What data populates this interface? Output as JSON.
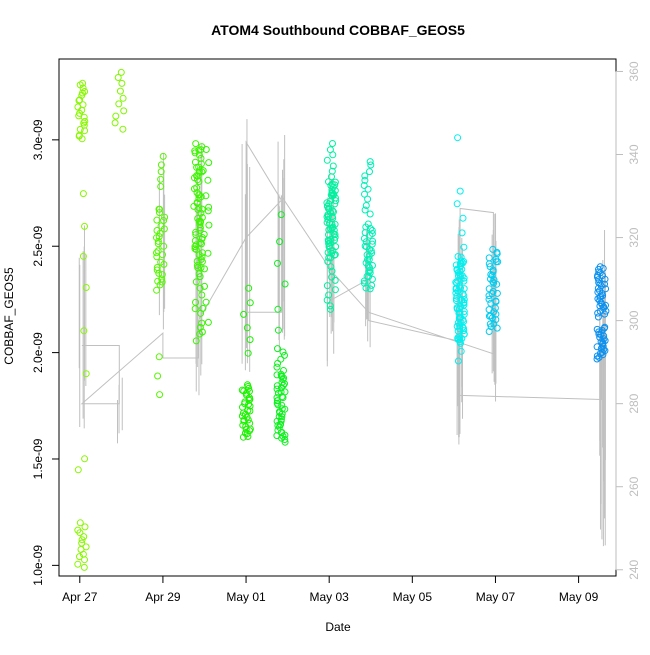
{
  "chart_data": {
    "type": "scatter",
    "title": "ATOM4 Southbound COBBAF_GEOS5",
    "xlabel": "Date",
    "ylabel": "COBBAF_GEOS5",
    "x_ticks": [
      {
        "day": 27,
        "label": "Apr 27"
      },
      {
        "day": 29,
        "label": "Apr 29"
      },
      {
        "day": 31,
        "label": "May 01"
      },
      {
        "day": 33,
        "label": "May 03"
      },
      {
        "day": 35,
        "label": "May 05"
      },
      {
        "day": 37,
        "label": "May 07"
      },
      {
        "day": 39,
        "label": "May 09"
      }
    ],
    "xlim": [
      26.5,
      39.9
    ],
    "ylim": [
      9.5e-10,
      3.38e-09
    ],
    "y_ticks": [
      {
        "value": 1e-09,
        "label": "1.0e-09"
      },
      {
        "value": 1.5e-09,
        "label": "1.5e-09"
      },
      {
        "value": 2e-09,
        "label": "2.0e-09"
      },
      {
        "value": 2.5e-09,
        "label": "2.5e-09"
      },
      {
        "value": 3e-09,
        "label": "3.0e-09"
      }
    ],
    "y2lim": [
      238.5,
      363
    ],
    "y2_ticks": [
      {
        "value": 240,
        "label": "240"
      },
      {
        "value": 260,
        "label": "260"
      },
      {
        "value": 280,
        "label": "280"
      },
      {
        "value": 300,
        "label": "300"
      },
      {
        "value": 320,
        "label": "320"
      },
      {
        "value": 340,
        "label": "340"
      },
      {
        "value": 360,
        "label": "360"
      }
    ],
    "point_groups": [
      {
        "x": 27.05,
        "color": "#88f700",
        "ranges": [
          [
            3e-09,
            3.27e-09,
            22
          ],
          [
            9.9e-10,
            1.2e-09,
            14
          ],
          [
            1.45e-09,
            1.5e-09,
            2
          ],
          [
            1.9e-09,
            2.1e-09,
            2
          ],
          [
            2.3e-09,
            2.75e-09,
            4
          ]
        ]
      },
      {
        "x": 27.95,
        "color": "#80f700",
        "ranges": [
          [
            3.05e-09,
            3.32e-09,
            10
          ]
        ]
      },
      {
        "x": 28.95,
        "color": "#55f700",
        "ranges": [
          [
            2.3e-09,
            2.68e-09,
            30
          ],
          [
            2.78e-09,
            2.92e-09,
            5
          ],
          [
            1.8e-09,
            1.98e-09,
            3
          ]
        ]
      },
      {
        "x": 29.85,
        "color": "#3ef500",
        "ranges": [
          [
            2.4e-09,
            2.98e-09,
            60
          ],
          [
            2.05e-09,
            2.4e-09,
            12
          ]
        ]
      },
      {
        "x": 30.0,
        "color": "#32f500",
        "ranges": [
          [
            2.1e-09,
            2.95e-09,
            18
          ]
        ]
      },
      {
        "x": 31.0,
        "color": "#1cf200",
        "ranges": [
          [
            1.6e-09,
            1.85e-09,
            35
          ],
          [
            2e-09,
            2.3e-09,
            6
          ]
        ]
      },
      {
        "x": 31.85,
        "color": "#10f020",
        "ranges": [
          [
            1.58e-09,
            1.9e-09,
            45
          ],
          [
            1.9e-09,
            2.02e-09,
            8
          ],
          [
            2.1e-09,
            2.64e-09,
            6
          ]
        ]
      },
      {
        "x": 33.05,
        "color": "#00f0a0",
        "ranges": [
          [
            2.45e-09,
            2.8e-09,
            60
          ],
          [
            2.2e-09,
            2.45e-09,
            12
          ],
          [
            2.8e-09,
            2.98e-09,
            8
          ]
        ]
      },
      {
        "x": 33.95,
        "color": "#00f0b5",
        "ranges": [
          [
            2.3e-09,
            2.6e-09,
            35
          ],
          [
            2.65e-09,
            2.9e-09,
            12
          ]
        ]
      },
      {
        "x": 36.15,
        "color": "#00f0f0",
        "ranges": [
          [
            2.05e-09,
            2.45e-09,
            70
          ],
          [
            2.5e-09,
            2.76e-09,
            5
          ],
          [
            1.96e-09,
            2.05e-09,
            3
          ],
          [
            3.01e-09,
            3.01e-09,
            1
          ]
        ]
      },
      {
        "x": 36.95,
        "color": "#00ccf0",
        "ranges": [
          [
            2.1e-09,
            2.48e-09,
            40
          ]
        ]
      },
      {
        "x": 39.55,
        "color": "#0a90f0",
        "ranges": [
          [
            2.17e-09,
            2.4e-09,
            35
          ],
          [
            1.97e-09,
            2.12e-09,
            25
          ]
        ]
      }
    ],
    "spike_groups": [
      {
        "x": 27.05,
        "count": 6,
        "lo": 270,
        "hi": 330
      },
      {
        "x": 27.95,
        "count": 3,
        "lo": 268,
        "hi": 287
      },
      {
        "x": 28.95,
        "count": 4,
        "lo": 295,
        "hi": 343
      },
      {
        "x": 29.85,
        "count": 8,
        "lo": 280,
        "hi": 343
      },
      {
        "x": 31.0,
        "count": 7,
        "lo": 283,
        "hi": 349
      },
      {
        "x": 31.85,
        "count": 8,
        "lo": 283,
        "hi": 345
      },
      {
        "x": 33.05,
        "count": 8,
        "lo": 284,
        "hi": 340
      },
      {
        "x": 33.95,
        "count": 5,
        "lo": 292,
        "hi": 327
      },
      {
        "x": 36.15,
        "count": 12,
        "lo": 270,
        "hi": 327
      },
      {
        "x": 36.95,
        "count": 8,
        "lo": 280,
        "hi": 328
      },
      {
        "x": 39.55,
        "count": 12,
        "lo": 245,
        "hi": 323
      }
    ],
    "track_line": [
      [
        27.05,
        294
      ],
      [
        27.95,
        294
      ],
      [
        27.95,
        280
      ],
      [
        27.05,
        280
      ],
      [
        29.0,
        297
      ],
      [
        29.0,
        291
      ],
      [
        29.85,
        291
      ],
      [
        29.85,
        300
      ],
      [
        31.0,
        320
      ],
      [
        31.85,
        329
      ],
      [
        31.0,
        343
      ],
      [
        31.0,
        302
      ],
      [
        31.85,
        302
      ],
      [
        31.85,
        330
      ],
      [
        33.05,
        312
      ],
      [
        33.05,
        305
      ],
      [
        33.95,
        310
      ],
      [
        33.95,
        300
      ],
      [
        36.15,
        295
      ],
      [
        36.15,
        327
      ],
      [
        36.95,
        326
      ],
      [
        36.95,
        292
      ],
      [
        33.95,
        302
      ],
      [
        33.05,
        312
      ]
    ],
    "track_line_tail": [
      [
        36.15,
        282
      ],
      [
        39.55,
        281
      ],
      [
        39.55,
        295
      ]
    ]
  }
}
